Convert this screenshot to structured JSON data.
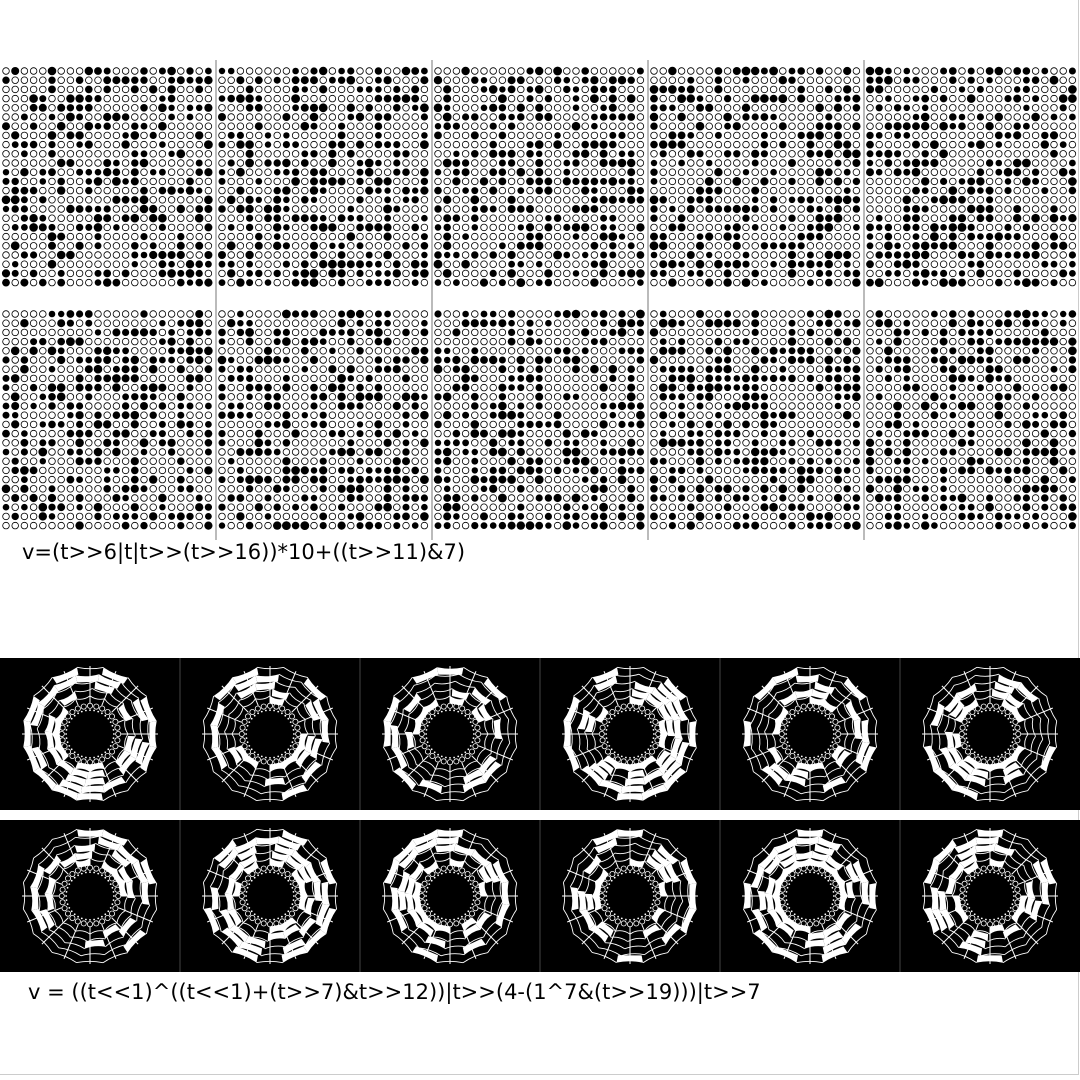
{
  "formulas": {
    "top": "v=(t>>6|t|t>>(t>>16))*10+((t>>11)&7)",
    "bottom": "v = ((t<<1)^((t<<1)+(t>>7)&t>>12))|t>>(4-(1^7&(t>>19)))|t>>7"
  },
  "dot_grid": {
    "columns": 5,
    "rows": 2
  },
  "web_strips": {
    "strips": 2,
    "panels_per_strip": 6
  },
  "colors": {
    "background": "#ffffff",
    "ink": "#000000",
    "web": "#ffffff"
  }
}
